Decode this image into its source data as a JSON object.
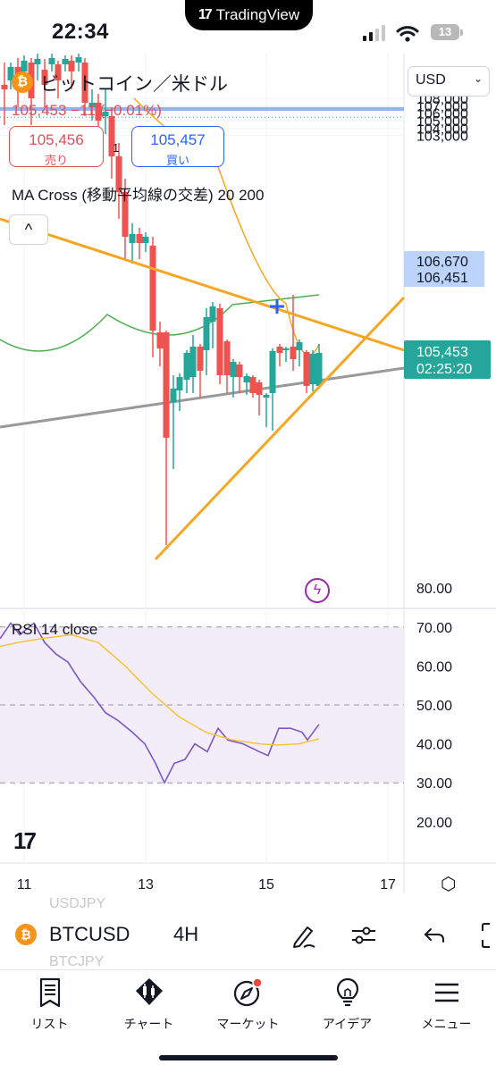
{
  "status": {
    "time": "22:34",
    "app_pill": "TradingView",
    "battery": "13"
  },
  "header": {
    "symbol_name": "ビットコイン／米ドル",
    "price_change": "105,453 −11 (−0.01%)",
    "sell": {
      "price": "105,456",
      "label": "売り"
    },
    "buy": {
      "price": "105,457",
      "label": "買い"
    },
    "spread": "1",
    "indicator": "MA Cross (移動平均線の交差) 20 200",
    "collapse_glyph": "^",
    "currency": "USD"
  },
  "price_axis": {
    "ticks": [
      "108,000",
      "107,000",
      "106,000",
      "105,000",
      "104,000",
      "103,000"
    ],
    "tags": [
      {
        "value": "106,670",
        "kind": "line"
      },
      {
        "value": "106,451",
        "kind": "line"
      },
      {
        "value": "105,453",
        "kind": "last",
        "countdown": "02:25:20"
      }
    ]
  },
  "rsi": {
    "label": "RSI 14 close",
    "ticks": [
      "80.00",
      "70.00",
      "60.00",
      "50.00",
      "40.00",
      "30.00",
      "20.00"
    ]
  },
  "time_axis": {
    "ticks": [
      "11",
      "13",
      "15",
      "17"
    ]
  },
  "colors": {
    "up": "#26a69a",
    "down": "#ef5350",
    "trend": "#f5a623",
    "rsi": "#7e57c2",
    "rsi_ma": "#fbc02d",
    "hline": "#90b4f5"
  },
  "symbol_bar": {
    "ghost_top": "USDJPY",
    "ticker": "BTCUSD",
    "interval": "4H",
    "ghost_bottom": "BTCJPY"
  },
  "nav": [
    {
      "label": "リスト",
      "icon": "list-icon"
    },
    {
      "label": "チャート",
      "icon": "chart-icon"
    },
    {
      "label": "マーケット",
      "icon": "compass-icon"
    },
    {
      "label": "アイデア",
      "icon": "lightbulb-icon"
    },
    {
      "label": "メニュー",
      "icon": "menu-icon"
    }
  ]
}
